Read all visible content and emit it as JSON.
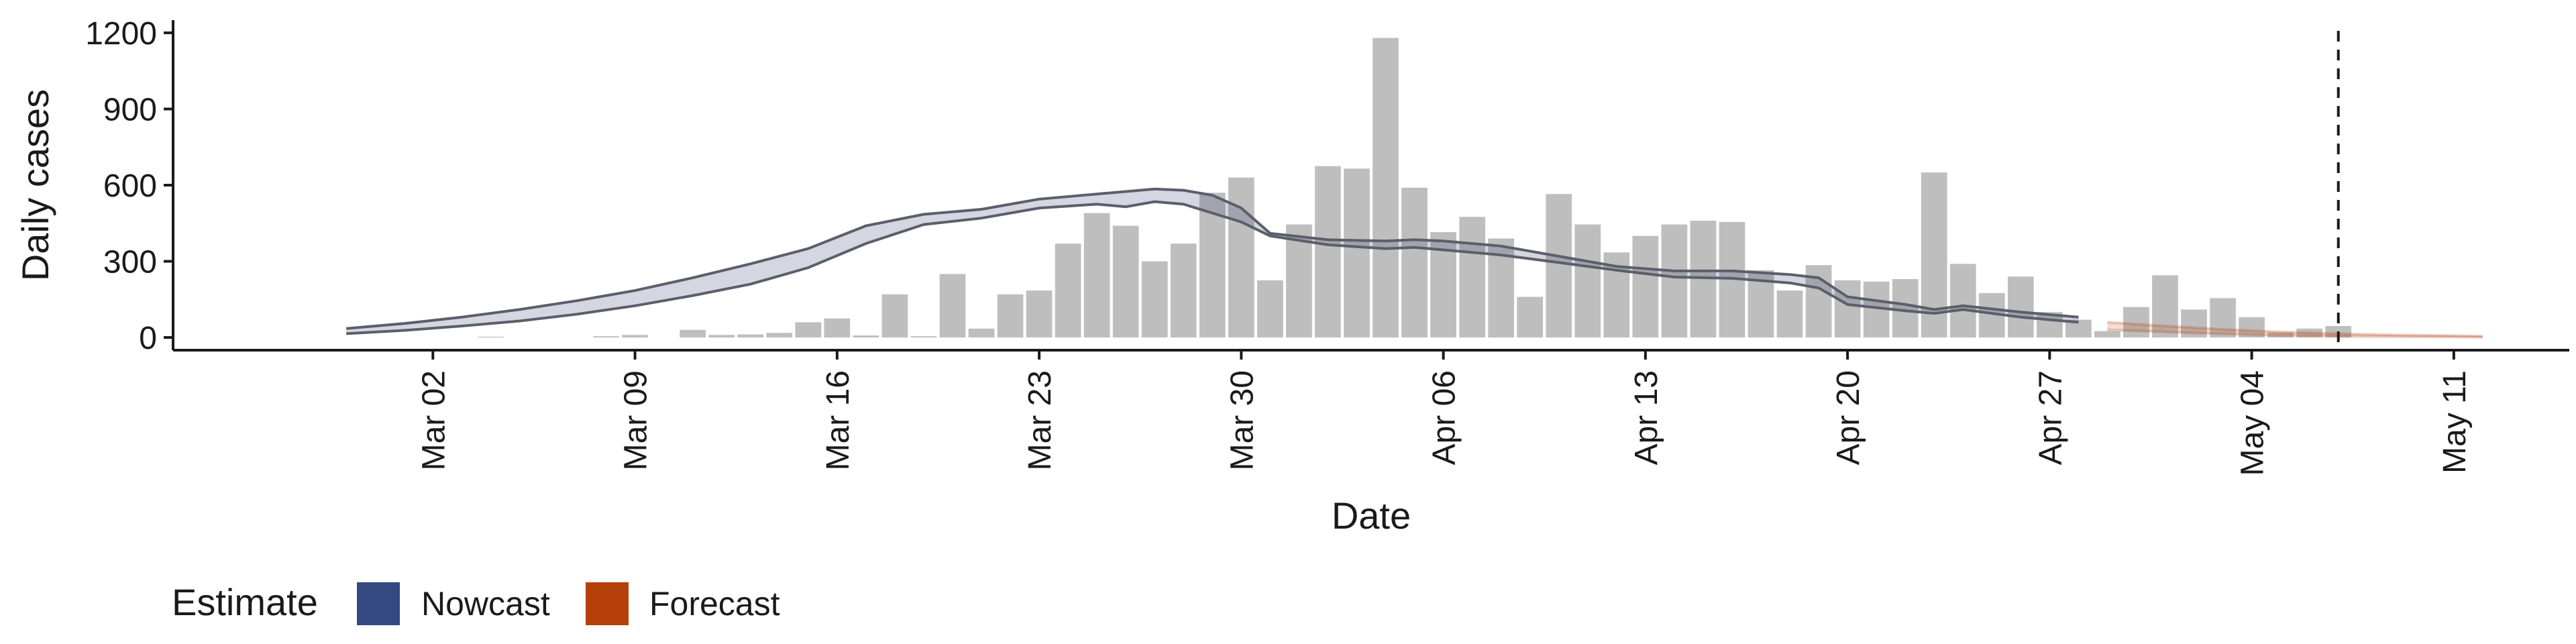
{
  "chart_data": {
    "type": "bar",
    "xlabel": "Date",
    "ylabel": "Daily cases",
    "ylim": [
      -50,
      1250
    ],
    "yticks": [
      0,
      300,
      600,
      900,
      1200
    ],
    "xlim": [
      "2020-02-22",
      "2020-05-15"
    ],
    "xticks": [
      {
        "date": "2020-03-02",
        "label": "Mar 02"
      },
      {
        "date": "2020-03-09",
        "label": "Mar 09"
      },
      {
        "date": "2020-03-16",
        "label": "Mar 16"
      },
      {
        "date": "2020-03-23",
        "label": "Mar 23"
      },
      {
        "date": "2020-03-30",
        "label": "Mar 30"
      },
      {
        "date": "2020-04-06",
        "label": "Apr 06"
      },
      {
        "date": "2020-04-13",
        "label": "Apr 13"
      },
      {
        "date": "2020-04-20",
        "label": "Apr 20"
      },
      {
        "date": "2020-04-27",
        "label": "Apr 27"
      },
      {
        "date": "2020-05-04",
        "label": "May 04"
      },
      {
        "date": "2020-05-11",
        "label": "May 11"
      }
    ],
    "grid": false,
    "legend_position": "bottom-left",
    "vline_date": "2020-05-07",
    "bars": {
      "color": "#bebebe",
      "dates": [
        "2020-03-01",
        "2020-03-02",
        "2020-03-03",
        "2020-03-04",
        "2020-03-05",
        "2020-03-06",
        "2020-03-07",
        "2020-03-08",
        "2020-03-09",
        "2020-03-10",
        "2020-03-11",
        "2020-03-12",
        "2020-03-13",
        "2020-03-14",
        "2020-03-15",
        "2020-03-16",
        "2020-03-17",
        "2020-03-18",
        "2020-03-19",
        "2020-03-20",
        "2020-03-21",
        "2020-03-22",
        "2020-03-23",
        "2020-03-24",
        "2020-03-25",
        "2020-03-26",
        "2020-03-27",
        "2020-03-28",
        "2020-03-29",
        "2020-03-30",
        "2020-03-31",
        "2020-04-01",
        "2020-04-02",
        "2020-04-03",
        "2020-04-04",
        "2020-04-05",
        "2020-04-06",
        "2020-04-07",
        "2020-04-08",
        "2020-04-09",
        "2020-04-10",
        "2020-04-11",
        "2020-04-12",
        "2020-04-13",
        "2020-04-14",
        "2020-04-15",
        "2020-04-16",
        "2020-04-17",
        "2020-04-18",
        "2020-04-19",
        "2020-04-20",
        "2020-04-21",
        "2020-04-22",
        "2020-04-23",
        "2020-04-24",
        "2020-04-25",
        "2020-04-26",
        "2020-04-27",
        "2020-04-28",
        "2020-04-29",
        "2020-04-30",
        "2020-05-01",
        "2020-05-02",
        "2020-05-03",
        "2020-05-04",
        "2020-05-05",
        "2020-05-06",
        "2020-05-07"
      ],
      "values": [
        0,
        0,
        0,
        3,
        0,
        0,
        0,
        5,
        10,
        0,
        30,
        10,
        12,
        18,
        60,
        75,
        8,
        170,
        5,
        250,
        35,
        170,
        185,
        370,
        490,
        440,
        300,
        370,
        570,
        630,
        225,
        445,
        675,
        665,
        1180,
        590,
        415,
        475,
        390,
        160,
        565,
        445,
        335,
        400,
        445,
        460,
        455,
        265,
        185,
        285,
        225,
        220,
        230,
        650,
        290,
        175,
        240,
        100,
        70,
        25,
        120,
        245,
        110,
        155,
        80,
        20,
        35,
        45
      ]
    },
    "series": [
      {
        "name": "Nowcast",
        "color": "#3a4a7a",
        "dates": [
          "2020-02-28",
          "2020-03-01",
          "2020-03-03",
          "2020-03-05",
          "2020-03-07",
          "2020-03-09",
          "2020-03-11",
          "2020-03-13",
          "2020-03-15",
          "2020-03-17",
          "2020-03-19",
          "2020-03-21",
          "2020-03-23",
          "2020-03-25",
          "2020-03-26",
          "2020-03-27",
          "2020-03-28",
          "2020-03-29",
          "2020-03-30",
          "2020-03-31",
          "2020-04-02",
          "2020-04-04",
          "2020-04-05",
          "2020-04-06",
          "2020-04-08",
          "2020-04-10",
          "2020-04-12",
          "2020-04-14",
          "2020-04-16",
          "2020-04-18",
          "2020-04-19",
          "2020-04-20",
          "2020-04-22",
          "2020-04-23",
          "2020-04-24",
          "2020-04-26",
          "2020-04-28"
        ],
        "lower": [
          15,
          28,
          45,
          65,
          92,
          125,
          165,
          210,
          275,
          370,
          445,
          470,
          510,
          525,
          515,
          535,
          525,
          490,
          455,
          400,
          365,
          350,
          355,
          345,
          325,
          295,
          265,
          238,
          233,
          215,
          195,
          130,
          105,
          95,
          110,
          80,
          60
        ],
        "upper": [
          35,
          55,
          80,
          110,
          145,
          185,
          235,
          290,
          350,
          440,
          485,
          505,
          545,
          565,
          575,
          585,
          580,
          560,
          510,
          410,
          385,
          380,
          385,
          380,
          360,
          320,
          280,
          262,
          262,
          248,
          235,
          160,
          130,
          110,
          125,
          100,
          80
        ]
      },
      {
        "name": "Forecast",
        "color": "#b5400a",
        "dates": [
          "2020-04-29",
          "2020-05-01",
          "2020-05-03",
          "2020-05-05",
          "2020-05-07",
          "2020-05-09",
          "2020-05-11",
          "2020-05-12"
        ],
        "lower": [
          30,
          22,
          14,
          8,
          5,
          3,
          2,
          1
        ],
        "upper": [
          60,
          45,
          32,
          22,
          15,
          10,
          7,
          5
        ]
      }
    ],
    "legend": {
      "title": "Estimate",
      "entries": [
        {
          "label": "Nowcast",
          "color": "#34497f"
        },
        {
          "label": "Forecast",
          "color": "#b5400a"
        }
      ]
    }
  }
}
